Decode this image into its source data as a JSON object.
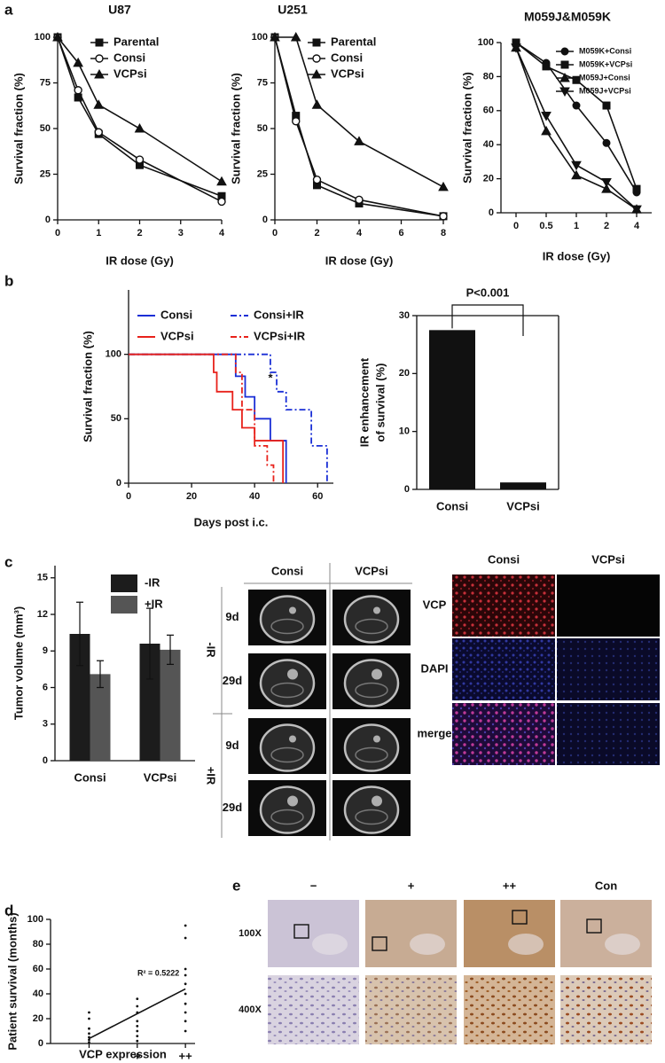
{
  "panel_labels": [
    "a",
    "b",
    "c",
    "d",
    "e"
  ],
  "chart_data": [
    {
      "type": "line",
      "title": "U87",
      "xlabel": "IR dose (Gy)",
      "ylabel": "Survival fraction (%)",
      "x": [
        0,
        0.5,
        1,
        2,
        4
      ],
      "xlim": [
        0,
        4
      ],
      "xticks": [
        0,
        1,
        2,
        3,
        4
      ],
      "ylim": [
        0,
        100
      ],
      "yticks": [
        0,
        25,
        50,
        75,
        100
      ],
      "series": [
        {
          "name": "Parental",
          "color": "#111111",
          "marker": "square",
          "values": [
            100,
            67,
            47,
            30,
            13
          ]
        },
        {
          "name": "Consi",
          "color": "#111111",
          "marker": "circle-open",
          "values": [
            100,
            71,
            48,
            33,
            10
          ]
        },
        {
          "name": "VCPsi",
          "color": "#111111",
          "marker": "triangle",
          "values": [
            100,
            86,
            63,
            50,
            21
          ]
        }
      ]
    },
    {
      "type": "line",
      "title": "U251",
      "xlabel": "IR dose (Gy)",
      "ylabel": "Survival fraction (%)",
      "x": [
        0,
        1,
        2,
        4,
        8
      ],
      "xlim": [
        0,
        8
      ],
      "xticks": [
        0,
        2,
        4,
        6,
        8
      ],
      "ylim": [
        0,
        100
      ],
      "yticks": [
        0,
        25,
        50,
        75,
        100
      ],
      "series": [
        {
          "name": "Parental",
          "color": "#111111",
          "marker": "square",
          "values": [
            100,
            57,
            19,
            9,
            2
          ]
        },
        {
          "name": "Consi",
          "color": "#111111",
          "marker": "circle-open",
          "values": [
            100,
            54,
            22,
            11,
            2
          ]
        },
        {
          "name": "VCPsi",
          "color": "#111111",
          "marker": "triangle",
          "values": [
            100,
            100,
            63,
            43,
            18
          ]
        }
      ]
    },
    {
      "type": "line",
      "title": "M059J&M059K",
      "xlabel": "IR dose (Gy)",
      "ylabel": "Survival fraction (%)",
      "categories": [
        "0",
        "0.5",
        "1",
        "2",
        "4"
      ],
      "ylim": [
        0,
        100
      ],
      "yticks": [
        0,
        20,
        40,
        60,
        80,
        100
      ],
      "series": [
        {
          "name": "M059K+Consi",
          "color": "#111111",
          "marker": "circle",
          "values": [
            100,
            88,
            63,
            41,
            12
          ]
        },
        {
          "name": "M059K+VCPsi",
          "color": "#111111",
          "marker": "square",
          "values": [
            100,
            86,
            78,
            63,
            14
          ]
        },
        {
          "name": "M059J+Consi",
          "color": "#111111",
          "marker": "triangle",
          "values": [
            97,
            48,
            22,
            14,
            2
          ]
        },
        {
          "name": "M059J+VCPsi",
          "color": "#111111",
          "marker": "triangle-down",
          "values": [
            97,
            57,
            28,
            18,
            2
          ]
        }
      ]
    },
    {
      "type": "step",
      "xlabel": "Days post i.c.",
      "ylabel": "Survival fraction (%)",
      "annotation": "*",
      "xlim": [
        0,
        65
      ],
      "xticks": [
        0,
        20,
        40,
        60
      ],
      "ylim": [
        0,
        150
      ],
      "yticks": [
        0,
        50,
        100
      ],
      "series": [
        {
          "name": "Consi",
          "color": "#1a2fd6",
          "dash": "solid",
          "x": [
            0,
            34,
            37,
            40,
            45,
            50
          ],
          "values": [
            100,
            83,
            67,
            50,
            33,
            0
          ]
        },
        {
          "name": "VCPsi",
          "color": "#e8221b",
          "dash": "solid",
          "x": [
            0,
            27,
            28,
            33,
            36,
            40,
            49
          ],
          "values": [
            100,
            86,
            71,
            57,
            43,
            33,
            0
          ]
        },
        {
          "name": "Consi+IR",
          "color": "#1a2fd6",
          "dash": "dashdot",
          "x": [
            0,
            45,
            47,
            50,
            58,
            63
          ],
          "values": [
            100,
            86,
            71,
            57,
            29,
            0
          ]
        },
        {
          "name": "VCPsi+IR",
          "color": "#e8221b",
          "dash": "dashdot",
          "x": [
            0,
            34,
            36,
            40,
            44,
            46
          ],
          "values": [
            100,
            86,
            57,
            29,
            14,
            0
          ]
        }
      ]
    },
    {
      "type": "bar",
      "ylabel": [
        "IR enhancement",
        "of survival (%)"
      ],
      "annotation": "P<0.001",
      "categories": [
        "Consi",
        "VCPsi"
      ],
      "values": [
        27.5,
        1.2
      ],
      "color": "#111111",
      "ylim": [
        0,
        30
      ],
      "yticks": [
        0,
        10,
        20,
        30
      ]
    },
    {
      "type": "grouped-bar",
      "ylabel": "Tumor volume (mm³)",
      "categories": [
        "Consi",
        "VCPsi"
      ],
      "ylim": [
        0,
        16
      ],
      "yticks": [
        0,
        3,
        6,
        9,
        12,
        15
      ],
      "series": [
        {
          "name": "-IR",
          "color": "#1c1c1c",
          "values": [
            10.4,
            9.6
          ],
          "errors": [
            2.6,
            2.9
          ]
        },
        {
          "name": "+IR",
          "color": "#555555",
          "values": [
            7.1,
            9.1
          ],
          "errors": [
            1.1,
            1.2
          ]
        }
      ]
    },
    {
      "type": "scatter",
      "xlabel": "VCP expression",
      "ylabel": "Patient survival (months)",
      "annotation": "R² = 0.5222",
      "x": [
        1,
        1,
        1,
        1,
        1,
        1,
        1,
        2,
        2,
        2,
        2,
        2,
        2,
        2,
        2,
        3,
        3,
        3,
        3,
        3,
        3,
        3,
        3,
        3,
        3
      ],
      "values": [
        1,
        3,
        5,
        8,
        12,
        20,
        25,
        2,
        6,
        10,
        14,
        18,
        25,
        30,
        36,
        10,
        18,
        25,
        32,
        40,
        48,
        55,
        60,
        85,
        95
      ],
      "trendline": {
        "x": [
          1,
          3
        ],
        "values": [
          4,
          44
        ]
      },
      "xlim": [
        0.2,
        3.2
      ],
      "xticks": [
        {
          "value": 1,
          "label": "-"
        },
        {
          "value": 2,
          "label": "+"
        },
        {
          "value": 3,
          "label": "++"
        }
      ],
      "ylim": [
        0,
        100
      ],
      "yticks": [
        0,
        20,
        40,
        60,
        80,
        100
      ]
    }
  ],
  "mri": {
    "columns": [
      "Consi",
      "VCPsi"
    ],
    "rows": [
      "9d",
      "29d",
      "9d",
      "29d"
    ],
    "groups": [
      "-IR",
      "+IR"
    ]
  },
  "if_stain": {
    "columns": [
      "Consi",
      "VCPsi"
    ],
    "rows": [
      "VCP",
      "DAPI",
      "merge"
    ]
  },
  "ihc": {
    "columns": [
      "−",
      "+",
      "++",
      "Con"
    ],
    "rows": [
      "100X",
      "400X"
    ]
  }
}
